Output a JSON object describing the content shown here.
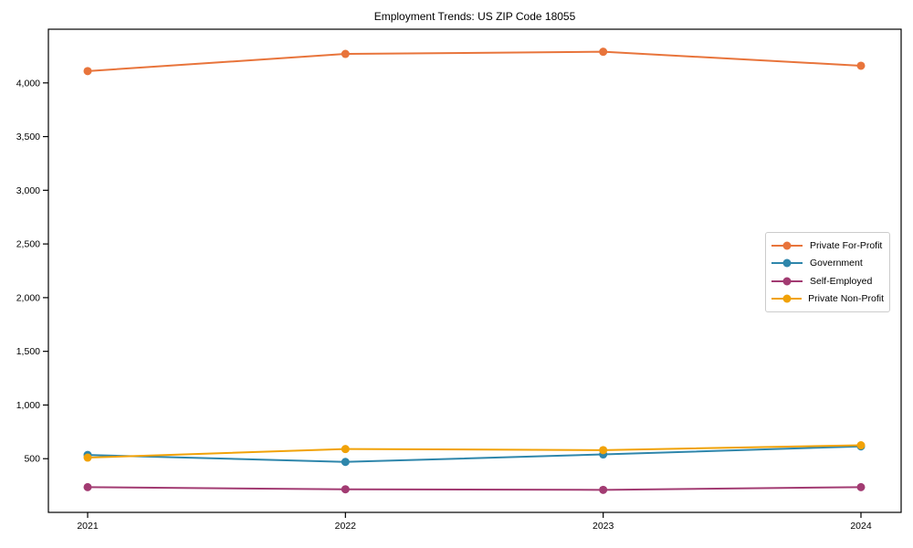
{
  "chart_data": {
    "type": "line",
    "title": "Employment Trends: US ZIP Code 18055",
    "xlabel": "",
    "ylabel": "",
    "categories": [
      "2021",
      "2022",
      "2023",
      "2024"
    ],
    "x": [
      2021,
      2022,
      2023,
      2024
    ],
    "series": [
      {
        "name": "Private For-Profit",
        "color": "#E8743B",
        "values": [
          4110,
          4270,
          4290,
          4160
        ]
      },
      {
        "name": "Government",
        "color": "#2E86AB",
        "values": [
          535,
          470,
          540,
          615
        ]
      },
      {
        "name": "Self-Employed",
        "color": "#A23B72",
        "values": [
          235,
          215,
          210,
          235
        ]
      },
      {
        "name": "Private Non-Profit",
        "color": "#F1A208",
        "values": [
          510,
          590,
          580,
          625
        ]
      }
    ],
    "ylim": [
      0,
      4500
    ],
    "yticks": [
      500,
      1000,
      1500,
      2000,
      2500,
      3000,
      3500,
      4000
    ],
    "ytick_labels": [
      "500",
      "1,000",
      "1,500",
      "2,000",
      "2,500",
      "3,000",
      "3,500",
      "4,000"
    ],
    "grid": false,
    "legend_position": "center-right",
    "marker": "circle",
    "axis_color": "#000000",
    "background_color": "#ffffff"
  }
}
